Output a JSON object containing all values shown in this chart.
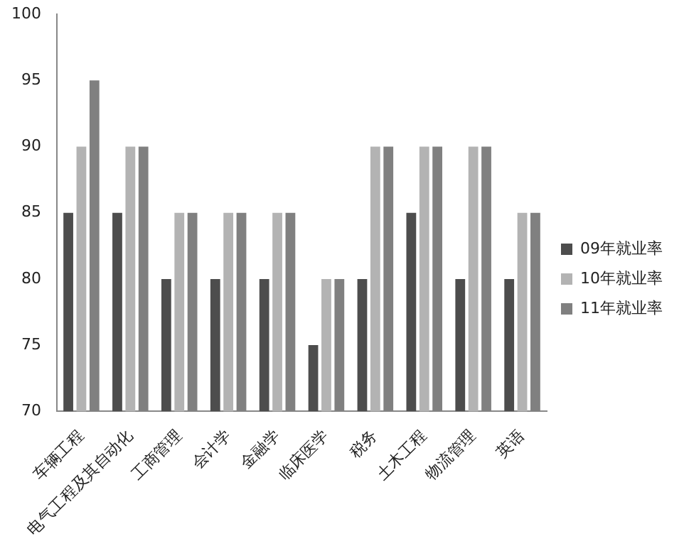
{
  "chart_data": {
    "type": "bar",
    "categories": [
      "车辆工程",
      "电气工程及其自动化",
      "工商管理",
      "会计学",
      "金融学",
      "临床医学",
      "税务",
      "土木工程",
      "物流管理",
      "英语"
    ],
    "series": [
      {
        "name": "09年就业率",
        "color": "#4d4d4d",
        "values": [
          85,
          85,
          80,
          80,
          80,
          75,
          80,
          85,
          80,
          80
        ]
      },
      {
        "name": "10年就业率",
        "color": "#b3b3b3",
        "values": [
          90,
          90,
          85,
          85,
          85,
          80,
          90,
          90,
          90,
          85
        ]
      },
      {
        "name": "11年就业率",
        "color": "#808080",
        "values": [
          95,
          90,
          85,
          85,
          85,
          80,
          90,
          90,
          90,
          85
        ]
      }
    ],
    "ylim": [
      70,
      100
    ],
    "yticks": [
      70,
      75,
      80,
      85,
      90,
      95,
      100
    ],
    "grid": false,
    "legend": "right"
  }
}
